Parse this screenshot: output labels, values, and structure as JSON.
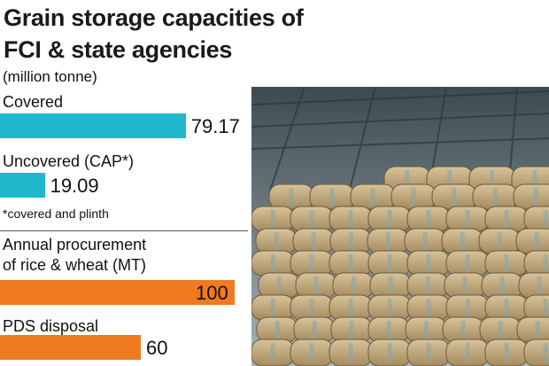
{
  "title": "Grain storage capacities of FCI & state agencies",
  "unit": "(million tonne)",
  "footnote": "*covered and plinth",
  "colors": {
    "storage": "#1fb8cc",
    "flow": "#f07a1f"
  },
  "chart_data": [
    {
      "type": "bar",
      "orientation": "horizontal",
      "title": "Grain storage capacities of FCI & state agencies",
      "unit": "(million tonne)",
      "categories": [
        "Covered",
        "Uncovered (CAP*)"
      ],
      "values": [
        79.17,
        19.09
      ],
      "value_labels": [
        "79.17",
        "19.09"
      ]
    },
    {
      "type": "bar",
      "orientation": "horizontal",
      "categories": [
        "Annual procurement of rice & wheat (MT)",
        "PDS disposal"
      ],
      "values": [
        100,
        60
      ],
      "value_labels": [
        "100",
        "60"
      ]
    }
  ],
  "image": {
    "subject": "photo"
  }
}
